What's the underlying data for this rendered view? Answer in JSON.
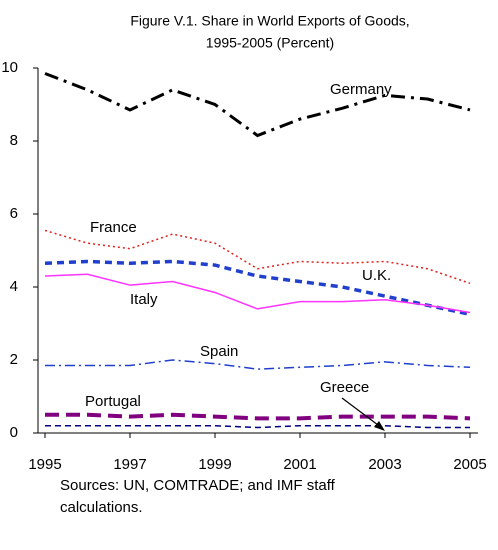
{
  "chart_data": {
    "type": "line",
    "title": [
      "Figure V.1. Share in World Exports of Goods,",
      "1995-2005 (Percent)"
    ],
    "note": [
      "Sources: UN, COMTRADE; and IMF staff",
      "calculations."
    ],
    "x": [
      1995,
      1996,
      1997,
      1998,
      1999,
      2000,
      2001,
      2002,
      2003,
      2004,
      2005
    ],
    "xlim": [
      1995,
      2005
    ],
    "xticks": [
      1995,
      1997,
      1999,
      2001,
      2003,
      2005
    ],
    "ylim": [
      0,
      10
    ],
    "yticks": [
      0,
      2,
      4,
      6,
      8,
      10
    ],
    "series": [
      {
        "name": "Germany",
        "color": "#000000",
        "values": [
          9.85,
          9.4,
          8.85,
          9.4,
          9.0,
          8.15,
          8.6,
          8.9,
          9.25,
          9.15,
          8.85
        ]
      },
      {
        "name": "France",
        "color": "#e0201c",
        "values": [
          5.55,
          5.2,
          5.05,
          5.45,
          5.2,
          4.5,
          4.7,
          4.65,
          4.7,
          4.5,
          4.1
        ]
      },
      {
        "name": "U.K.",
        "color": "#1f3fcc",
        "values": [
          4.65,
          4.7,
          4.65,
          4.7,
          4.6,
          4.3,
          4.15,
          4.0,
          3.75,
          3.5,
          3.25
        ]
      },
      {
        "name": "Italy",
        "color": "#ff33ff",
        "values": [
          4.3,
          4.35,
          4.05,
          4.15,
          3.85,
          3.4,
          3.6,
          3.6,
          3.65,
          3.5,
          3.3
        ]
      },
      {
        "name": "Spain",
        "color": "#1f3fcc",
        "values": [
          1.85,
          1.85,
          1.85,
          2.0,
          1.9,
          1.75,
          1.8,
          1.85,
          1.95,
          1.85,
          1.8
        ]
      },
      {
        "name": "Portugal",
        "color": "#800080",
        "values": [
          0.5,
          0.5,
          0.45,
          0.5,
          0.45,
          0.4,
          0.4,
          0.45,
          0.45,
          0.45,
          0.4
        ]
      },
      {
        "name": "Greece",
        "color": "#000080",
        "values": [
          0.2,
          0.2,
          0.2,
          0.2,
          0.2,
          0.15,
          0.2,
          0.2,
          0.2,
          0.15,
          0.15
        ]
      }
    ]
  }
}
